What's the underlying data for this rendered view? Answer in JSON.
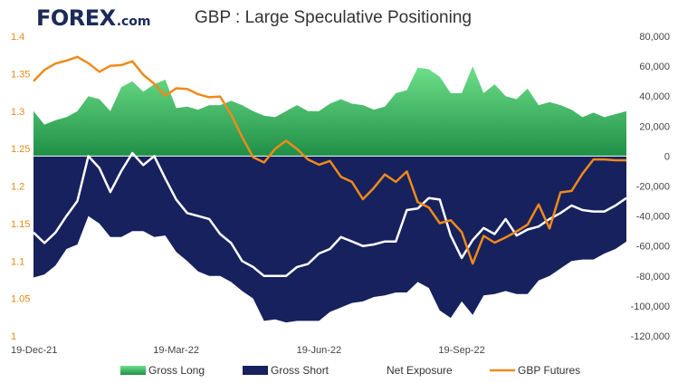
{
  "header": {
    "logo_text": "FOREX",
    "logo_suffix": ".com",
    "title": "GBP : Large Speculative Positioning"
  },
  "colors": {
    "gross_long_top": "#6fe08a",
    "gross_long_bottom": "#1f8f46",
    "gross_short": "#17215e",
    "net_exposure": "#ffffff",
    "gbp_futures": "#f08a19",
    "left_axis_text": "#e8891b",
    "logo": "#1b2a57",
    "logo_o_ring": "#1fa34a"
  },
  "chart_data": {
    "type": "area",
    "title": "GBP : Large Speculative Positioning",
    "x_tick_labels": [
      "19-Dec-21",
      "19-Mar-22",
      "19-Jun-22",
      "19-Sep-22"
    ],
    "left_axis": {
      "ylim": [
        1,
        1.4
      ],
      "ticks": [
        "1",
        "1.05",
        "1.1",
        "1.15",
        "1.2",
        "1.25",
        "1.3",
        "1.35",
        "1.4"
      ]
    },
    "right_axis": {
      "ylim": [
        -120000,
        80000
      ],
      "ticks": [
        "80,000",
        "60,000",
        "40,000",
        "20,000",
        "0",
        "-20,000",
        "-40,000",
        "-60,000",
        "-80,000",
        "-100,000",
        "-120,000"
      ]
    },
    "weeks": 55,
    "series": [
      {
        "name": "Gross Long",
        "axis": "right",
        "kind": "area",
        "values": [
          30000,
          21000,
          24000,
          26000,
          30000,
          40000,
          38000,
          30000,
          46000,
          50000,
          43000,
          48000,
          51000,
          32000,
          33000,
          31000,
          34000,
          34000,
          37000,
          34000,
          30000,
          27000,
          26000,
          30000,
          34000,
          30000,
          30000,
          35000,
          38000,
          35000,
          34000,
          31000,
          33000,
          42000,
          44000,
          59000,
          58000,
          53000,
          42000,
          42000,
          60000,
          42000,
          48000,
          40000,
          38000,
          45000,
          34000,
          36000,
          34000,
          31000,
          26000,
          29000,
          26000,
          28000,
          30000
        ]
      },
      {
        "name": "Gross Short",
        "axis": "right",
        "kind": "area",
        "values": [
          -81000,
          -79000,
          -73000,
          -62000,
          -59000,
          -40000,
          -45000,
          -54000,
          -54000,
          -50000,
          -50000,
          -54000,
          -53000,
          -64000,
          -70000,
          -77000,
          -80000,
          -80000,
          -84000,
          -90000,
          -95000,
          -110000,
          -109000,
          -111000,
          -110000,
          -110000,
          -110000,
          -104000,
          -101000,
          -98000,
          -97000,
          -94000,
          -93000,
          -91000,
          -91000,
          -84000,
          -88000,
          -103000,
          -108000,
          -97000,
          -106000,
          -93000,
          -92000,
          -90000,
          -92000,
          -92000,
          -83000,
          -80000,
          -75000,
          -70000,
          -69000,
          -69000,
          -65000,
          -62000,
          -57000
        ]
      },
      {
        "name": "Net Exposure",
        "axis": "right",
        "kind": "line",
        "values": [
          -51000,
          -58000,
          -51000,
          -40000,
          -30000,
          0,
          -8000,
          -24000,
          -10000,
          2000,
          -6000,
          0,
          -15000,
          -29000,
          -38000,
          -40000,
          -42000,
          -52000,
          -58000,
          -70000,
          -74000,
          -80000,
          -80000,
          -80000,
          -74000,
          -72000,
          -65000,
          -62000,
          -54000,
          -57000,
          -60000,
          -59000,
          -57000,
          -57000,
          -36000,
          -35000,
          -28000,
          -29000,
          -53000,
          -68000,
          -56000,
          -48000,
          -52000,
          -42000,
          -53000,
          -49000,
          -47000,
          -42000,
          -38000,
          -33000,
          -36000,
          -37000,
          -37000,
          -33000,
          -28000
        ]
      },
      {
        "name": "GBP Futures",
        "axis": "left",
        "kind": "line",
        "values": [
          1.34,
          1.355,
          1.3635,
          1.3675,
          1.3725,
          1.364,
          1.3525,
          1.3605,
          1.3615,
          1.3665,
          1.3485,
          1.3365,
          1.3205,
          1.3305,
          1.3295,
          1.3225,
          1.3185,
          1.3195,
          1.2955,
          1.2655,
          1.2385,
          1.2315,
          1.2495,
          1.2605,
          1.2495,
          1.2355,
          1.2285,
          1.2335,
          1.2125,
          1.2055,
          1.1825,
          1.1975,
          1.2155,
          1.2055,
          1.2195,
          1.1785,
          1.1715,
          1.1505,
          1.1545,
          1.1385,
          1.0965,
          1.1335,
          1.1245,
          1.1315,
          1.1395,
          1.1485,
          1.1755,
          1.1435,
          1.1915,
          1.1935,
          1.2165,
          1.2355,
          1.2355,
          1.2345,
          1.2345
        ]
      }
    ],
    "legend": [
      "Gross Long",
      "Gross Short",
      "Net Exposure",
      "GBP Futures"
    ],
    "legend_position": "bottom",
    "grid": false
  }
}
